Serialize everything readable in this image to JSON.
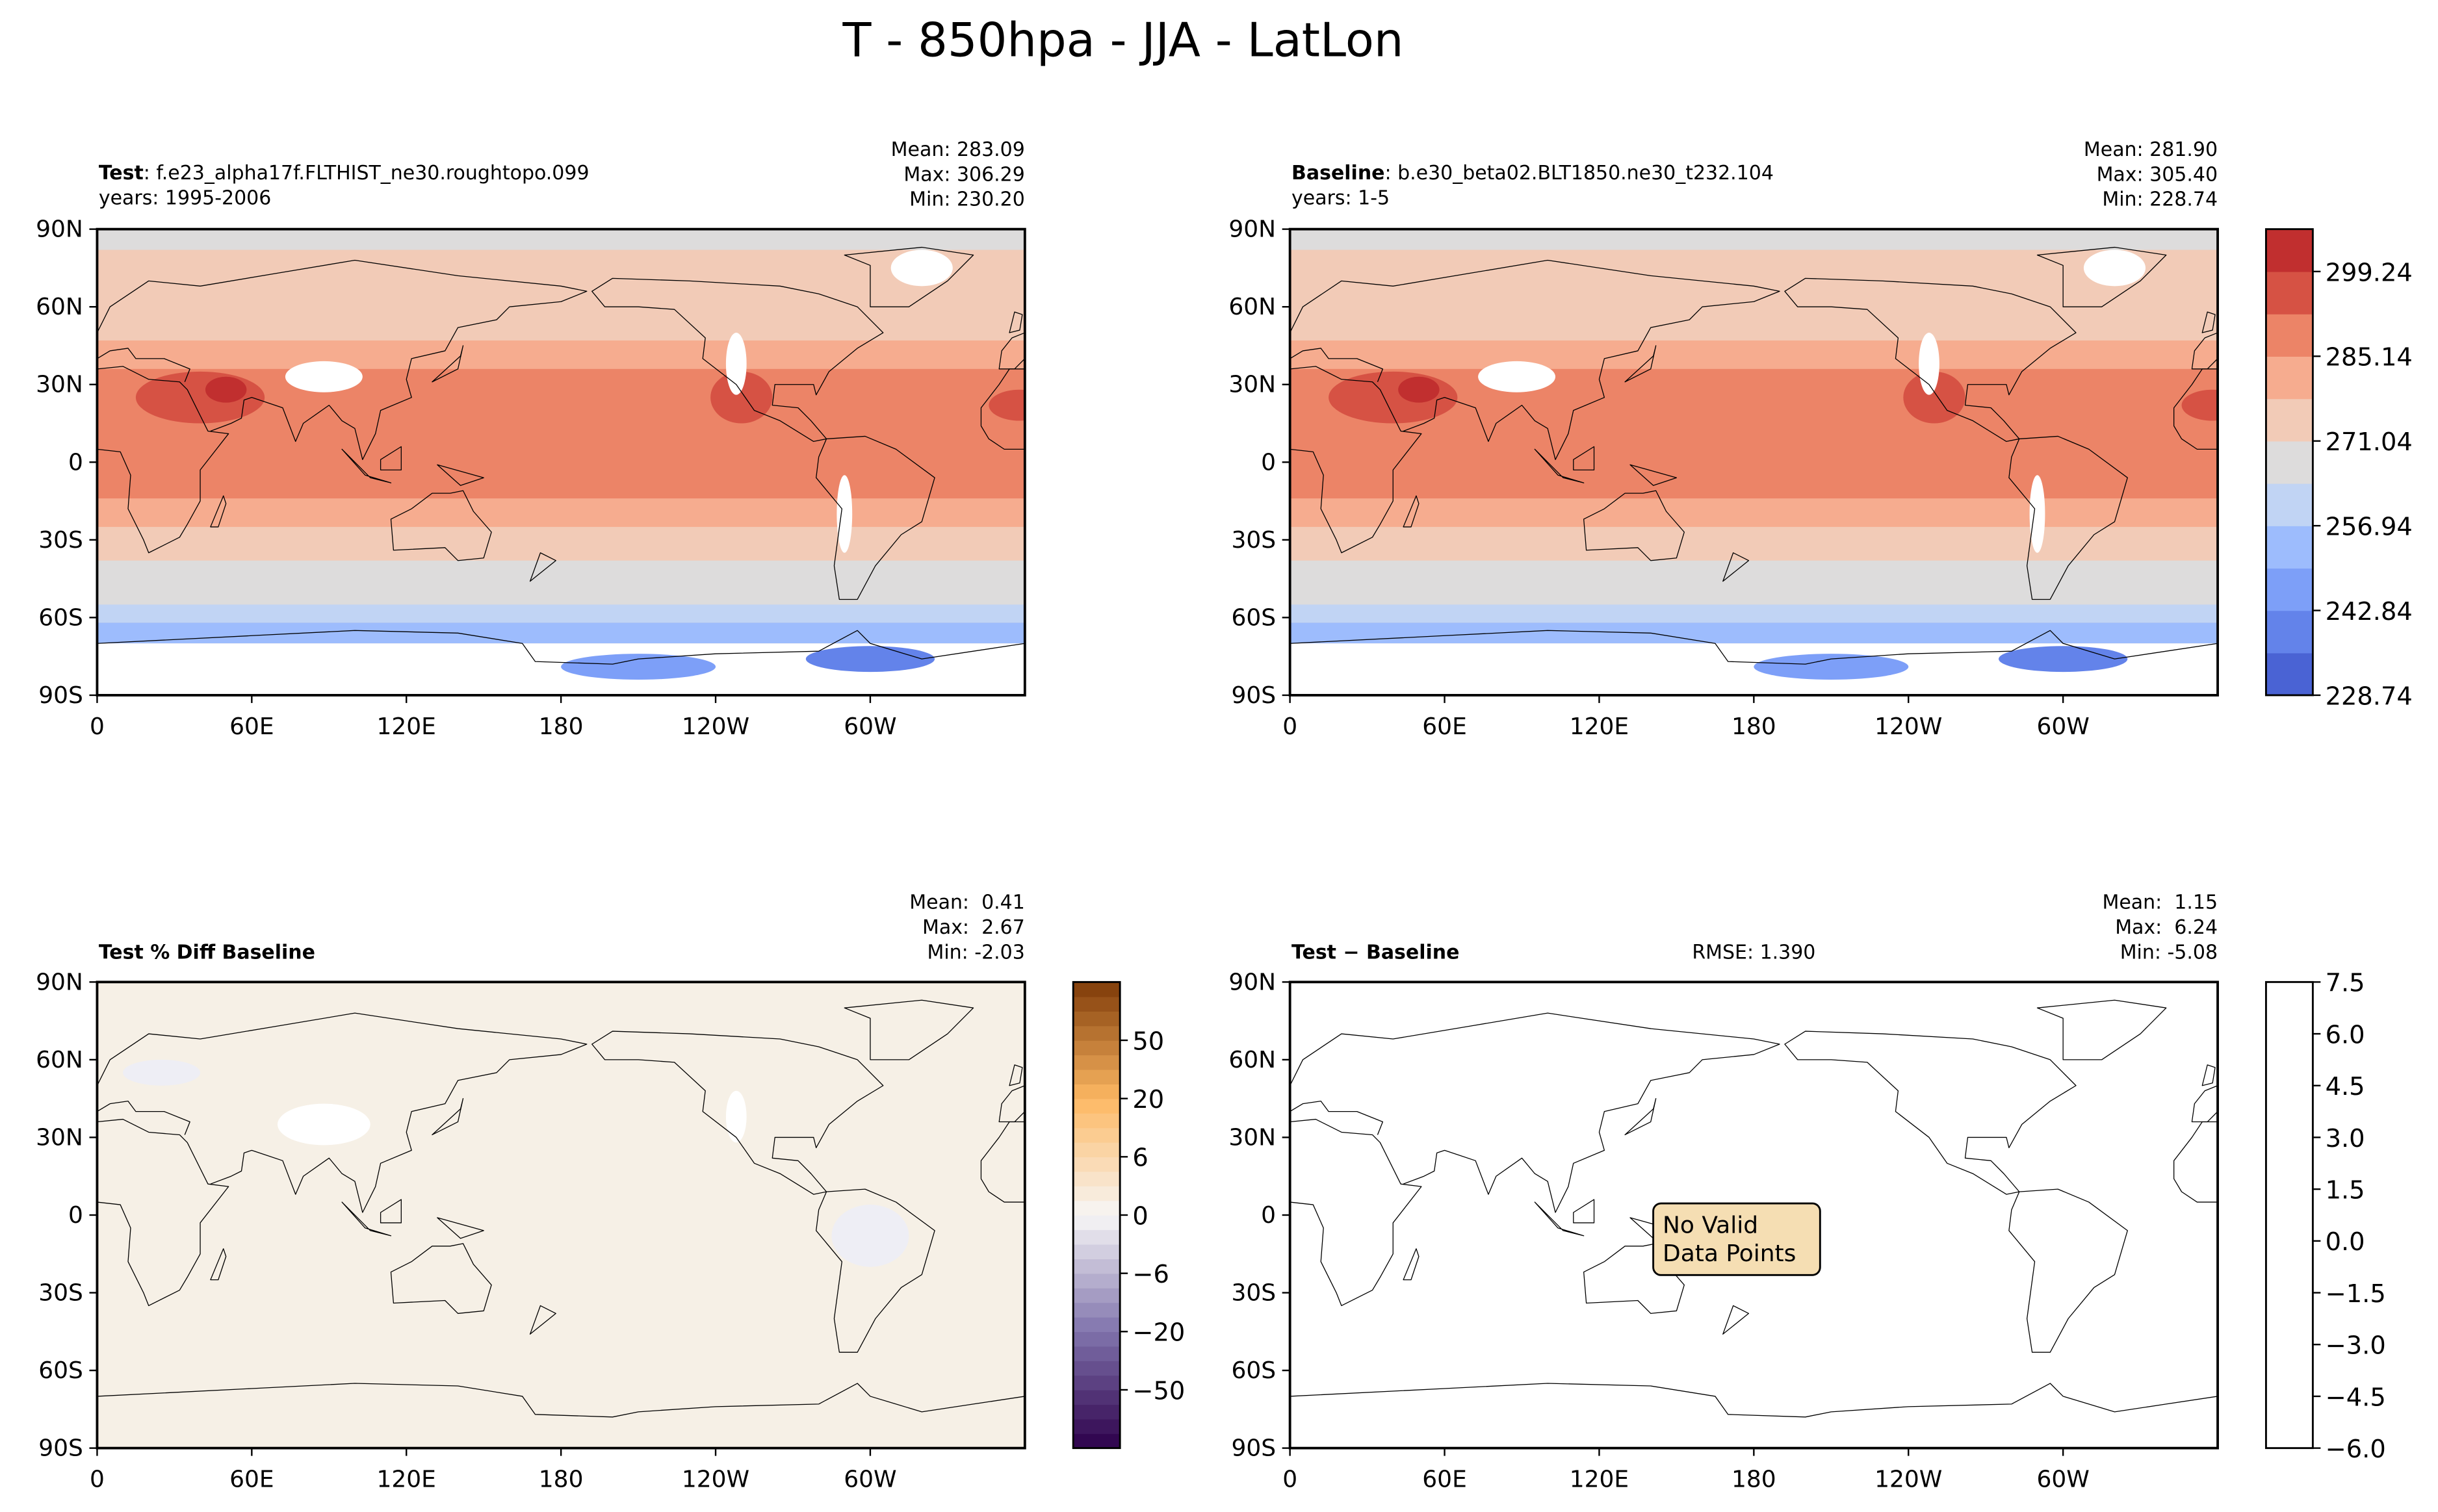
{
  "title": "T - 850hpa - JJA - LatLon",
  "chart_data": [
    {
      "type": "map",
      "label": "Test",
      "name": ": f.e23_alpha17f.FLTHIST_ne30.roughtopo.099",
      "years": "years: 1995-2006",
      "stats": [
        "Mean: 283.09",
        "Max: 306.29",
        "Min: 230.20"
      ],
      "xlim": [
        0,
        360
      ],
      "ylim": [
        -90,
        90
      ],
      "xticks": [
        0,
        {
          "value": 60,
          "label": "60E"
        },
        {
          "value": 120,
          "label": "120E"
        },
        180,
        {
          "value": 240,
          "label": "120W"
        },
        {
          "value": 300,
          "label": "60W"
        }
      ],
      "yticks": [
        {
          "value": -90,
          "label": "90S"
        },
        {
          "value": -60,
          "label": "60S"
        },
        {
          "value": -30,
          "label": "30S"
        },
        0,
        {
          "value": 30,
          "label": "30N"
        },
        {
          "value": 60,
          "label": "60N"
        },
        {
          "value": 90,
          "label": "90N"
        }
      ]
    },
    {
      "type": "map",
      "label": "Baseline",
      "name": ": b.e30_beta02.BLT1850.ne30_t232.104",
      "years": "years: 1-5",
      "stats": [
        "Mean: 281.90",
        "Max: 305.40",
        "Min: 228.74"
      ],
      "xlim": [
        0,
        360
      ],
      "ylim": [
        -90,
        90
      ],
      "xticks": [
        0,
        {
          "value": 60,
          "label": "60E"
        },
        {
          "value": 120,
          "label": "120E"
        },
        180,
        {
          "value": 240,
          "label": "120W"
        },
        {
          "value": 300,
          "label": "60W"
        }
      ],
      "yticks": [
        {
          "value": -90,
          "label": "90S"
        },
        {
          "value": -60,
          "label": "60S"
        },
        {
          "value": -30,
          "label": "30S"
        },
        0,
        {
          "value": 30,
          "label": "30N"
        },
        {
          "value": 60,
          "label": "60N"
        },
        {
          "value": 90,
          "label": "90N"
        }
      ],
      "colorbar": {
        "levels": [
          228.74,
          235.79,
          242.84,
          249.89,
          256.94,
          263.99,
          271.04,
          278.09,
          285.14,
          292.19,
          299.24,
          306.29
        ],
        "colors": [
          "#4a63d4",
          "#6383ea",
          "#7d9ff8",
          "#9dbcfd",
          "#c1d4f4",
          "#dddcdc",
          "#f2cbb7",
          "#f6ac8f",
          "#ec8467",
          "#d65244",
          "#c12f2f"
        ],
        "yticks": [
          228.74,
          242.84,
          256.94,
          271.04,
          285.14,
          299.24
        ]
      }
    },
    {
      "type": "map",
      "label": "Test % Diff Baseline",
      "stats": [
        "Mean:  0.41",
        "Max:  2.67",
        "Min: -2.03"
      ],
      "xlim": [
        0,
        360
      ],
      "ylim": [
        -90,
        90
      ],
      "xticks": [
        0,
        {
          "value": 60,
          "label": "60E"
        },
        {
          "value": 120,
          "label": "120E"
        },
        180,
        {
          "value": 240,
          "label": "120W"
        },
        {
          "value": 300,
          "label": "60W"
        }
      ],
      "yticks": [
        {
          "value": -90,
          "label": "90S"
        },
        {
          "value": -60,
          "label": "60S"
        },
        {
          "value": -30,
          "label": "30S"
        },
        0,
        {
          "value": 30,
          "label": "30N"
        },
        {
          "value": 60,
          "label": "60N"
        },
        {
          "value": 90,
          "label": "90N"
        }
      ],
      "colorbar": {
        "levels": [
          -100,
          -80,
          -70,
          -60,
          -50,
          -40,
          -30,
          -25,
          -20,
          -15,
          -10,
          -8,
          -6,
          -4,
          -2,
          -1,
          0,
          1,
          2,
          4,
          6,
          8,
          10,
          15,
          20,
          25,
          30,
          40,
          50,
          60,
          70,
          80,
          100
        ],
        "colors": [
          "#2d004b",
          "#8073ac",
          "#f7f7f7",
          "#fdb863",
          "#7f3b08"
        ],
        "yticks": [
          {
            "value": -50,
            "label": "−50"
          },
          {
            "value": -20,
            "label": "−20"
          },
          {
            "value": -6,
            "label": "−6"
          },
          0,
          6,
          20,
          50
        ]
      }
    },
    {
      "type": "map",
      "label": "Test − Baseline",
      "rmse": "RMSE: 1.390",
      "note": [
        "No Valid",
        "Data Points"
      ],
      "stats": [
        "Mean:  1.15",
        "Max:  6.24",
        "Min: -5.08"
      ],
      "xlim": [
        0,
        360
      ],
      "ylim": [
        -90,
        90
      ],
      "xticks": [
        0,
        {
          "value": 60,
          "label": "60E"
        },
        {
          "value": 120,
          "label": "120E"
        },
        180,
        {
          "value": 240,
          "label": "120W"
        },
        {
          "value": 300,
          "label": "60W"
        }
      ],
      "yticks": [
        {
          "value": -90,
          "label": "90S"
        },
        {
          "value": -60,
          "label": "60S"
        },
        {
          "value": -30,
          "label": "30S"
        },
        0,
        {
          "value": 30,
          "label": "30N"
        },
        {
          "value": 60,
          "label": "60N"
        },
        {
          "value": 90,
          "label": "90N"
        }
      ],
      "colorbar": {
        "ylim": [
          -6,
          7.5
        ],
        "colors": [
          "#ffffff"
        ],
        "yticks": [
          {
            "value": -6,
            "label": "−6.0"
          },
          {
            "value": -4.5,
            "label": "−4.5"
          },
          {
            "value": -3,
            "label": "−3.0"
          },
          {
            "value": -1.5,
            "label": "−1.5"
          },
          {
            "value": 0,
            "label": "0.0"
          },
          1.5,
          {
            "value": 3,
            "label": "3.0"
          },
          4.5,
          {
            "value": 6,
            "label": "6.0"
          },
          7.5
        ]
      }
    }
  ]
}
